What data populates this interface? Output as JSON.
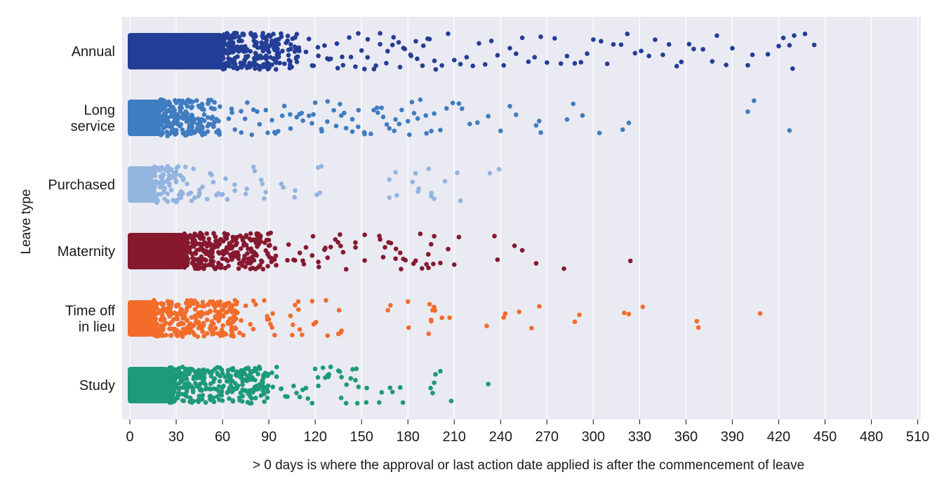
{
  "chart_data": {
    "type": "scatter",
    "subtype": "strip-plot",
    "title": "",
    "xlabel": "> 0 days is where the approval or last action date applied is after the commencement of leave",
    "ylabel": "Leave type",
    "xlim": [
      -5,
      512
    ],
    "xticks": [
      0,
      30,
      60,
      90,
      120,
      150,
      180,
      210,
      240,
      270,
      300,
      330,
      360,
      390,
      420,
      450,
      480,
      510
    ],
    "grid": true,
    "legend": "none",
    "background": "#eaeaf2",
    "categories": [
      {
        "lines": [
          "Annual"
        ],
        "color": "#233e96"
      },
      {
        "lines": [
          "Long",
          "service"
        ],
        "color": "#3f7cc0"
      },
      {
        "lines": [
          "Purchased"
        ],
        "color": "#93b4df"
      },
      {
        "lines": [
          "Maternity"
        ],
        "color": "#86192e"
      },
      {
        "lines": [
          "Time off",
          "in lieu"
        ],
        "color": "#f26c2a"
      },
      {
        "lines": [
          "Study"
        ],
        "color": "#1d9a77"
      }
    ],
    "series": [
      {
        "name": "Annual",
        "dense_until": 60,
        "dense_fade": 110,
        "values": [
          403,
          437,
          420,
          427,
          430,
          423,
          443,
          429,
          413,
          400,
          390,
          386,
          380,
          377,
          371,
          365,
          362,
          357,
          354,
          349,
          345,
          340,
          336,
          331,
          327,
          322,
          318,
          313,
          309,
          305,
          300,
          296,
          292,
          288,
          283,
          279,
          275,
          270,
          266,
          262,
          258,
          254,
          250,
          246,
          242,
          238,
          234,
          230,
          226,
          222,
          218,
          214,
          210,
          206,
          202,
          198,
          194,
          190,
          186,
          182,
          178,
          174,
          170,
          166,
          162,
          158,
          154,
          150,
          146,
          142,
          138,
          134,
          130,
          126,
          122,
          118,
          114
        ]
      },
      {
        "name": "Long service",
        "dense_until": 20,
        "dense_fade": 60,
        "values": [
          400,
          404,
          427,
          323,
          319,
          304,
          293,
          287,
          283,
          266,
          265,
          263,
          250,
          246,
          240,
          232,
          225,
          220,
          215,
          213,
          209,
          205,
          201,
          197,
          192,
          188,
          184,
          180,
          176,
          172,
          168,
          164,
          160,
          156,
          152,
          148,
          144,
          140,
          136,
          132,
          128,
          124,
          120,
          116,
          112,
          108,
          104,
          100,
          96,
          92,
          88,
          84,
          80,
          76,
          72,
          68,
          64
        ]
      },
      {
        "name": "Purchased",
        "dense_until": 15,
        "dense_fade": 35,
        "values": [
          239,
          233,
          214,
          212,
          204,
          197,
          195,
          187,
          183,
          172,
          168,
          124,
          121,
          107,
          98,
          87,
          85,
          80,
          75,
          68,
          62,
          60,
          56,
          54,
          50,
          47,
          45,
          42,
          40,
          38,
          36
        ]
      },
      {
        "name": "Maternity",
        "dense_until": 35,
        "dense_fade": 95,
        "values": [
          324,
          281,
          263,
          254,
          249,
          238,
          236,
          213,
          210,
          206,
          201,
          197,
          195,
          192,
          188,
          185,
          177,
          175,
          172,
          169,
          164,
          162,
          152,
          146,
          140,
          136,
          133,
          130,
          126,
          122,
          118,
          114,
          110,
          106,
          102
        ]
      },
      {
        "name": "Time off in lieu",
        "dense_until": 15,
        "dense_fade": 70,
        "values": [
          408,
          368,
          367,
          332,
          323,
          320,
          291,
          288,
          265,
          260,
          252,
          243,
          242,
          231,
          207,
          202,
          197,
          196,
          195,
          194,
          180,
          167,
          137,
          135,
          128,
          119,
          118,
          110,
          109,
          107,
          104,
          92,
          91,
          90,
          87,
          80,
          78,
          75,
          72
        ]
      },
      {
        "name": "Study",
        "dense_until": 25,
        "dense_fade": 90,
        "values": [
          232,
          208,
          201,
          197,
          196,
          175,
          170,
          163,
          153,
          148,
          146,
          143,
          140,
          137,
          135,
          130,
          128,
          125,
          122,
          118,
          114,
          110,
          106,
          102,
          98,
          95,
          92
        ]
      }
    ]
  }
}
